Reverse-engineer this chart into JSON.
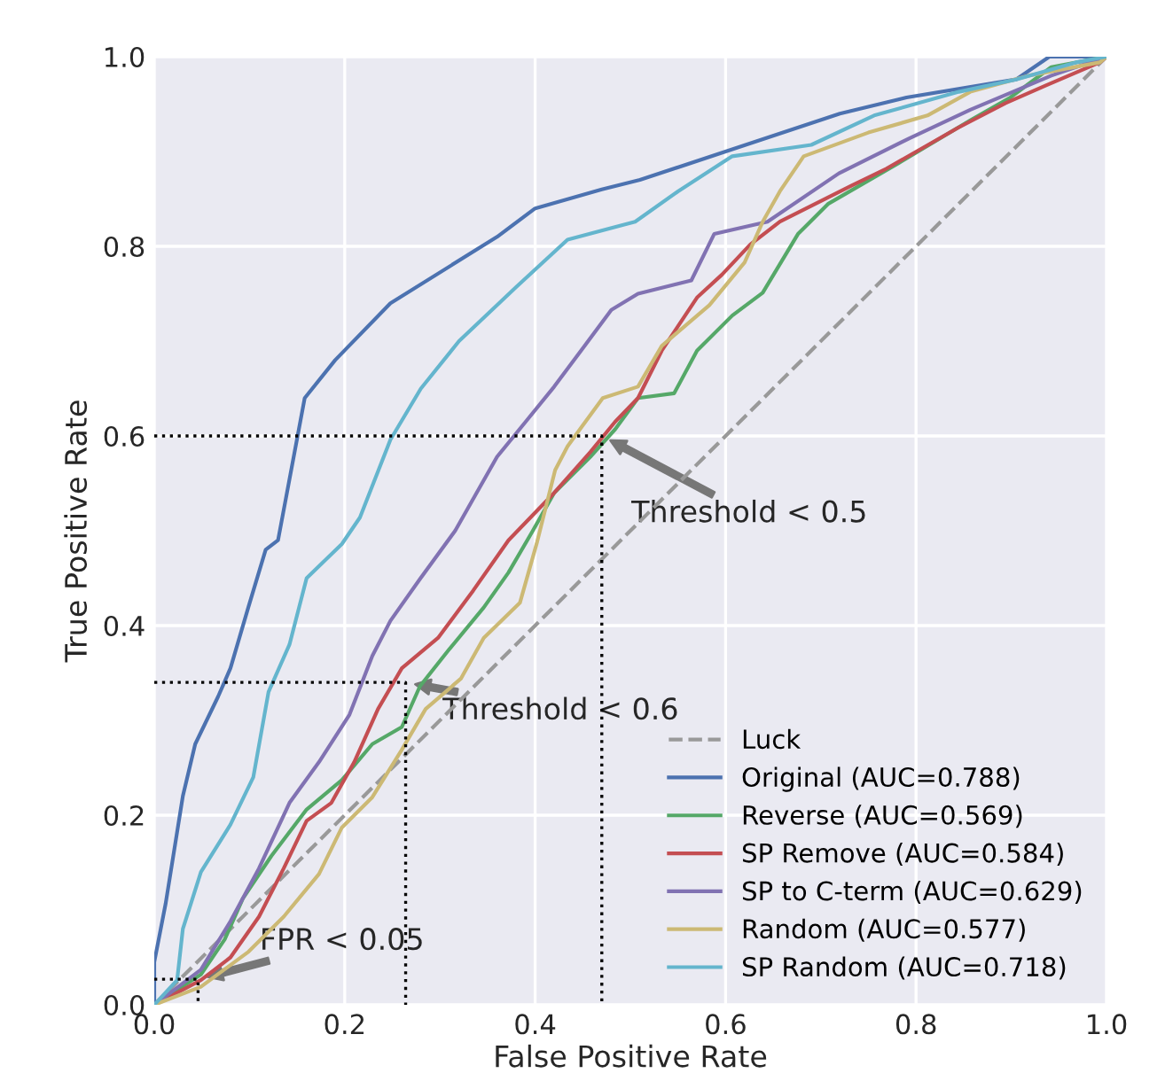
{
  "chart_data": {
    "type": "line",
    "xlabel": "False Positive Rate",
    "ylabel": "True Positive Rate",
    "xlim": [
      0,
      1
    ],
    "ylim": [
      0,
      1
    ],
    "xticks": [
      {
        "value": 0,
        "label": "0.0"
      },
      {
        "value": 0.2,
        "label": "0.2"
      },
      {
        "value": 0.4,
        "label": "0.4"
      },
      {
        "value": 0.6,
        "label": "0.6"
      },
      {
        "value": 0.8,
        "label": "0.8"
      },
      {
        "value": 1,
        "label": "1.0"
      }
    ],
    "yticks": [
      {
        "value": 0,
        "label": "0.0"
      },
      {
        "value": 0.2,
        "label": "0.2"
      },
      {
        "value": 0.4,
        "label": "0.4"
      },
      {
        "value": 0.6,
        "label": "0.6"
      },
      {
        "value": 0.8,
        "label": "0.8"
      },
      {
        "value": 1,
        "label": "1.0"
      }
    ],
    "grid": true,
    "legend": "bottom right",
    "series": [
      {
        "name": "Luck",
        "color": "#999999",
        "line_style": "dashed",
        "x": [
          0,
          1
        ],
        "values": [
          0,
          1
        ]
      },
      {
        "name": "Original (AUC=0.788)",
        "color": "#4c72b0",
        "x": [
          0,
          0,
          0.012,
          0.03,
          0.043,
          0.067,
          0.08,
          0.099,
          0.117,
          0.13,
          0.158,
          0.19,
          0.248,
          0.36,
          0.4,
          0.47,
          0.51,
          0.6,
          0.72,
          0.79,
          0.905,
          0.94,
          1
        ],
        "values": [
          0,
          0.045,
          0.107,
          0.22,
          0.275,
          0.325,
          0.355,
          0.42,
          0.48,
          0.49,
          0.64,
          0.68,
          0.74,
          0.81,
          0.84,
          0.86,
          0.87,
          0.9,
          0.94,
          0.957,
          0.976,
          1.0,
          1.0
        ]
      },
      {
        "name": "Reverse (AUC=0.569)",
        "color": "#55a868",
        "x": [
          0,
          0.049,
          0.074,
          0.093,
          0.123,
          0.16,
          0.197,
          0.229,
          0.26,
          0.279,
          0.309,
          0.346,
          0.372,
          0.397,
          0.42,
          0.458,
          0.484,
          0.508,
          0.546,
          0.57,
          0.607,
          0.639,
          0.676,
          0.708,
          0.782,
          0.857,
          0.899,
          0.942,
          1
        ],
        "values": [
          0,
          0.032,
          0.069,
          0.112,
          0.157,
          0.206,
          0.237,
          0.275,
          0.293,
          0.336,
          0.374,
          0.419,
          0.456,
          0.499,
          0.54,
          0.578,
          0.607,
          0.64,
          0.645,
          0.69,
          0.727,
          0.751,
          0.813,
          0.845,
          0.888,
          0.933,
          0.957,
          0.989,
          1
        ]
      },
      {
        "name": "SP Remove (AUC=0.584)",
        "color": "#c44e52",
        "x": [
          0,
          0.049,
          0.08,
          0.11,
          0.136,
          0.16,
          0.186,
          0.21,
          0.235,
          0.26,
          0.298,
          0.335,
          0.372,
          0.42,
          0.458,
          0.484,
          0.508,
          0.533,
          0.57,
          0.596,
          0.626,
          0.657,
          0.732,
          0.769,
          0.844,
          0.894,
          0.937,
          0.993,
          1
        ],
        "values": [
          0,
          0.026,
          0.05,
          0.093,
          0.144,
          0.194,
          0.213,
          0.256,
          0.312,
          0.355,
          0.387,
          0.437,
          0.49,
          0.54,
          0.583,
          0.615,
          0.64,
          0.69,
          0.746,
          0.77,
          0.802,
          0.826,
          0.864,
          0.882,
          0.925,
          0.951,
          0.97,
          0.994,
          1
        ]
      },
      {
        "name": "SP to C-term (AUC=0.629)",
        "color": "#8172b2",
        "x": [
          0,
          0.049,
          0.08,
          0.11,
          0.142,
          0.173,
          0.205,
          0.229,
          0.248,
          0.279,
          0.316,
          0.36,
          0.39,
          0.42,
          0.452,
          0.48,
          0.508,
          0.564,
          0.588,
          0.644,
          0.719,
          0.793,
          0.857,
          0.942,
          1
        ],
        "values": [
          0,
          0.037,
          0.088,
          0.144,
          0.213,
          0.256,
          0.306,
          0.368,
          0.405,
          0.449,
          0.5,
          0.578,
          0.615,
          0.652,
          0.695,
          0.733,
          0.75,
          0.764,
          0.813,
          0.826,
          0.877,
          0.914,
          0.944,
          0.98,
          1
        ]
      },
      {
        "name": "Random (AUC=0.577)",
        "color": "#ccb974",
        "x": [
          0,
          0.049,
          0.099,
          0.136,
          0.173,
          0.197,
          0.229,
          0.26,
          0.285,
          0.322,
          0.346,
          0.384,
          0.402,
          0.421,
          0.434,
          0.447,
          0.471,
          0.508,
          0.533,
          0.583,
          0.62,
          0.639,
          0.657,
          0.682,
          0.75,
          0.812,
          0.857,
          0.918,
          0.993,
          1
        ],
        "values": [
          0,
          0.019,
          0.056,
          0.093,
          0.138,
          0.187,
          0.219,
          0.269,
          0.312,
          0.344,
          0.387,
          0.424,
          0.488,
          0.564,
          0.589,
          0.607,
          0.64,
          0.652,
          0.695,
          0.738,
          0.783,
          0.826,
          0.858,
          0.895,
          0.92,
          0.938,
          0.963,
          0.98,
          0.994,
          1
        ]
      },
      {
        "name": "SP Random (AUC=0.718)",
        "color": "#64b5cd",
        "x": [
          0,
          0.024,
          0.03,
          0.049,
          0.08,
          0.104,
          0.12,
          0.142,
          0.16,
          0.197,
          0.216,
          0.248,
          0.28,
          0.32,
          0.38,
          0.434,
          0.505,
          0.55,
          0.607,
          0.69,
          0.756,
          0.845,
          0.905,
          0.968,
          1
        ],
        "values": [
          0,
          0.026,
          0.08,
          0.14,
          0.19,
          0.24,
          0.33,
          0.38,
          0.45,
          0.486,
          0.514,
          0.596,
          0.65,
          0.7,
          0.757,
          0.807,
          0.826,
          0.858,
          0.895,
          0.907,
          0.938,
          0.963,
          0.976,
          0.994,
          1
        ]
      },
      {
        "color": "#000000",
        "line_style": "dotted",
        "x": [
          0,
          0.47,
          0.47
        ],
        "values": [
          0.6,
          0.6,
          0
        ]
      },
      {
        "color": "#000000",
        "line_style": "dotted",
        "x": [
          0,
          0.264,
          0.264
        ],
        "values": [
          0.34,
          0.34,
          0
        ]
      },
      {
        "color": "#000000",
        "line_style": "dotted",
        "x": [
          0,
          0.046,
          0.046
        ],
        "values": [
          0.027,
          0.027,
          0
        ]
      }
    ],
    "annotations": [
      {
        "text": "Threshold < 0.5",
        "x": 0.47,
        "y": 0.6
      },
      {
        "text": "Threshold < 0.6",
        "x": 0.264,
        "y": 0.34
      },
      {
        "text": "FPR < 0.05",
        "x": 0.046,
        "y": 0.027
      }
    ]
  }
}
